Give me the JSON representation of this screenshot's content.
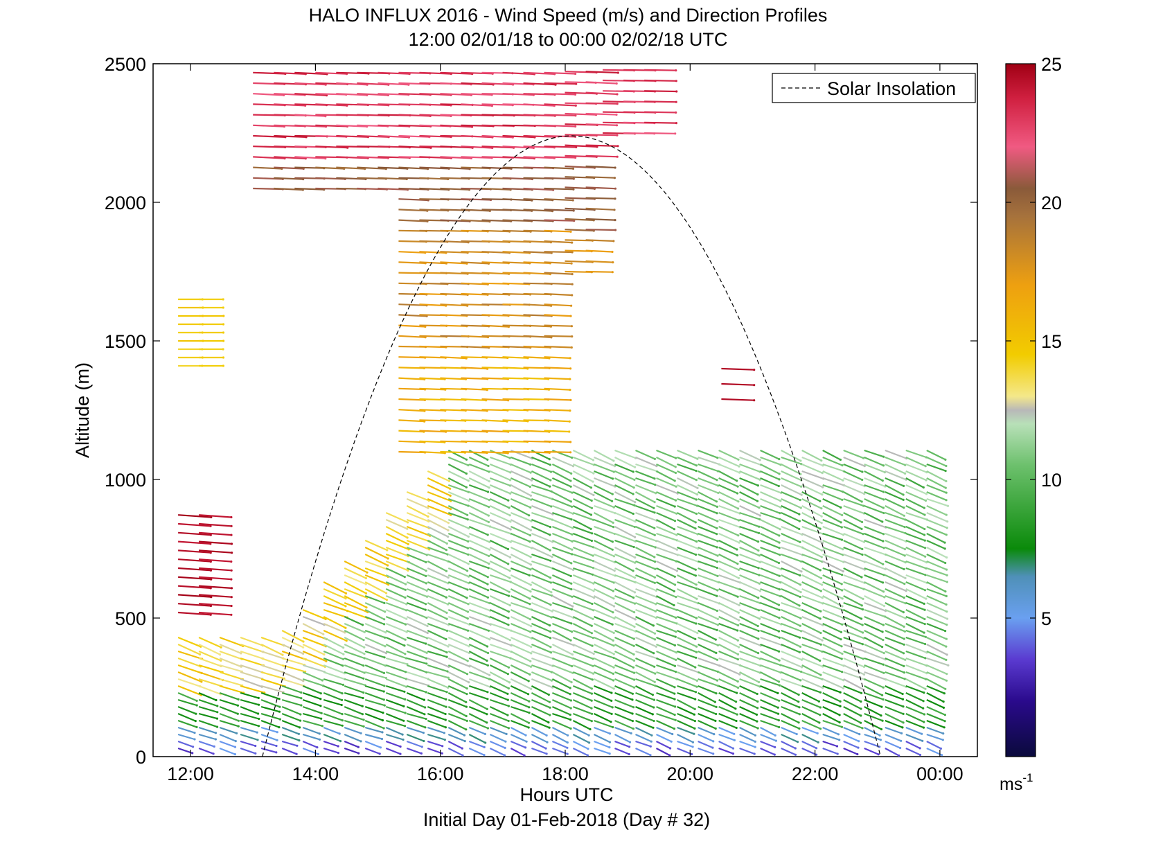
{
  "title_line1": "HALO INFLUX 2016 - Wind Speed (m/s) and Direction Profiles",
  "title_line2": "12:00 02/01/18 to 00:00 02/02/18  UTC",
  "xlabel": "Hours UTC",
  "ylabel": "Altitude (m)",
  "footer": "Initial Day 01-Feb-2018 (Day # 32)",
  "legend_label": "Solar Insolation",
  "colorbar_unit": "ms",
  "colorbar_unit_exp": "-1",
  "chart_data": {
    "type": "quiver",
    "xlim_hours_utc": [
      11.4,
      24.6
    ],
    "ylim_m": [
      0,
      2500
    ],
    "x_ticks": [
      {
        "hour": 12,
        "label": "12:00"
      },
      {
        "hour": 14,
        "label": "14:00"
      },
      {
        "hour": 16,
        "label": "16:00"
      },
      {
        "hour": 18,
        "label": "18:00"
      },
      {
        "hour": 20,
        "label": "20:00"
      },
      {
        "hour": 22,
        "label": "22:00"
      },
      {
        "hour": 24,
        "label": "00:00"
      }
    ],
    "y_ticks": [
      0,
      500,
      1000,
      1500,
      2000,
      2500
    ],
    "colorbar": {
      "min": 0,
      "max": 25,
      "ticks": [
        5,
        10,
        15,
        20,
        25
      ]
    },
    "solar_insolation": {
      "start_hour": 13.15,
      "end_hour": 23.05,
      "peak_hour": 18.1,
      "peak_altitude_m": 2240
    },
    "legend_position": "top-right",
    "grid": false,
    "wind_profiles_summary": [
      {
        "hours": [
          11.8,
          12.4
        ],
        "altitude_m": [
          1400,
          1660
        ],
        "speed_ms": 14,
        "direction": "westerly"
      },
      {
        "hours": [
          11.8,
          12.8
        ],
        "altitude_m": [
          500,
          910
        ],
        "speed_ms": 24,
        "direction": "westerly"
      },
      {
        "hours": [
          11.8,
          13.3
        ],
        "altitude_m": [
          20,
          120
        ],
        "speed_ms": 3,
        "direction": "westerly"
      },
      {
        "hours": [
          11.8,
          16.0
        ],
        "altitude_m": [
          130,
          500
        ],
        "speed_ms": 9,
        "direction": "north-westerly"
      },
      {
        "hours": [
          13.0,
          18.5
        ],
        "altitude_m": [
          1100,
          2500
        ],
        "speed_ms": 18,
        "direction": "westerly"
      },
      {
        "hours": [
          16.0,
          23.8
        ],
        "altitude_m": [
          40,
          1150
        ],
        "speed_ms": 10,
        "direction": "north-westerly"
      },
      {
        "hours": [
          20.4,
          21.0
        ],
        "altitude_m": [
          1290,
          1420
        ],
        "speed_ms": 24,
        "direction": "westerly"
      }
    ]
  }
}
